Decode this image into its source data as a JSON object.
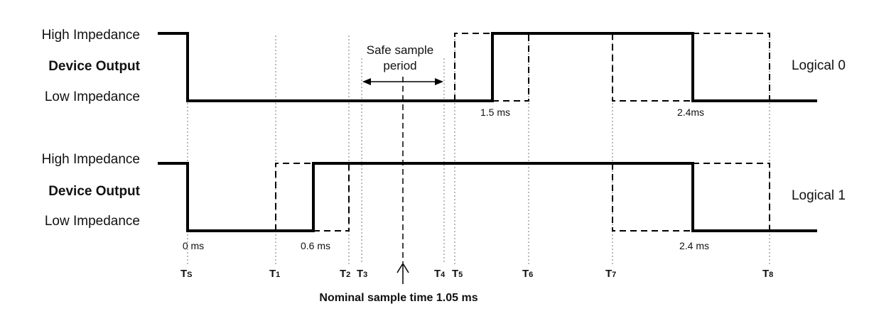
{
  "upper": {
    "high_label": "High Impedance",
    "device_label": "Device Output",
    "low_label": "Low Impedance",
    "logic_label": "Logical 0",
    "time_left": "1.5 ms",
    "time_right": "2.4ms"
  },
  "lower": {
    "high_label": "High Impedance",
    "device_label": "Device Output",
    "low_label": "Low Impedance",
    "logic_label": "Logical 1",
    "time_start": "0 ms",
    "time_mid": "0.6 ms",
    "time_right": "2.4 ms"
  },
  "safe_sample": {
    "line1": "Safe sample",
    "line2": "period"
  },
  "ticks": [
    {
      "main": "T",
      "sub": "S"
    },
    {
      "main": "T",
      "sub": "1"
    },
    {
      "main": "T",
      "sub": "2"
    },
    {
      "main": "T",
      "sub": "3"
    },
    {
      "main": "T",
      "sub": "4"
    },
    {
      "main": "T",
      "sub": "5"
    },
    {
      "main": "T",
      "sub": "6"
    },
    {
      "main": "T",
      "sub": "7"
    },
    {
      "main": "T",
      "sub": "8"
    }
  ],
  "nominal": "Nominal sample time 1.05 ms"
}
